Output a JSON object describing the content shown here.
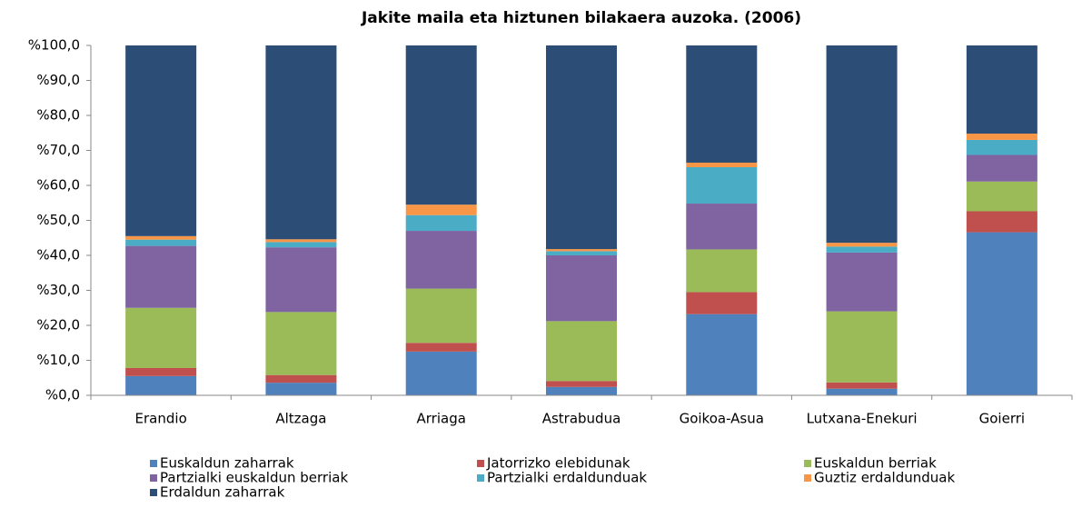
{
  "chart_data": {
    "type": "stacked_bar",
    "title": "Jakite maila eta hiztunen bilakaera auzoka. (2006)",
    "categories": [
      "Erandio",
      "Altzaga",
      "Arriaga",
      "Astrabudua",
      "Goikoa-Asua",
      "Lutxana-Enekuri",
      "Goierri"
    ],
    "series": [
      {
        "name": "Euskaldun zaharrak",
        "color": "#4f81bd",
        "values": [
          5.5,
          3.6,
          12.5,
          2.4,
          23.2,
          1.9,
          46.6
        ]
      },
      {
        "name": "Jatorrizko elebidunak",
        "color": "#c0504d",
        "values": [
          2.3,
          2.2,
          2.5,
          1.7,
          6.3,
          1.8,
          6.0
        ]
      },
      {
        "name": "Euskaldun berriak",
        "color": "#9bbb59",
        "values": [
          17.2,
          18.0,
          15.5,
          17.1,
          12.2,
          20.3,
          8.5
        ]
      },
      {
        "name": "Partzialki euskaldun berriak",
        "color": "#8064a2",
        "values": [
          17.7,
          18.5,
          16.5,
          18.8,
          13.1,
          16.8,
          7.6
        ]
      },
      {
        "name": "Partzialki erdaldunduak",
        "color": "#4bacc6",
        "values": [
          1.8,
          1.5,
          4.5,
          1.2,
          10.4,
          1.7,
          4.3
        ]
      },
      {
        "name": "Guztiz erdaldunduak",
        "color": "#f79646",
        "values": [
          1.0,
          0.8,
          3.0,
          0.6,
          1.3,
          1.1,
          1.8
        ]
      },
      {
        "name": "Erdaldun zaharrak",
        "color": "#2c4d75",
        "values": [
          54.5,
          55.4,
          45.5,
          58.2,
          33.5,
          56.4,
          25.2
        ]
      }
    ],
    "ylim": [
      0,
      100
    ],
    "yticks": [
      {
        "value": 0,
        "label": "%0,0"
      },
      {
        "value": 10,
        "label": "%10,0"
      },
      {
        "value": 20,
        "label": "%20,0"
      },
      {
        "value": 30,
        "label": "%30,0"
      },
      {
        "value": 40,
        "label": "%40,0"
      },
      {
        "value": 50,
        "label": "%50,0"
      },
      {
        "value": 60,
        "label": "%60,0"
      },
      {
        "value": 70,
        "label": "%70,0"
      },
      {
        "value": 80,
        "label": "%80,0"
      },
      {
        "value": 90,
        "label": "%90,0"
      },
      {
        "value": 100,
        "label": "%100,0"
      }
    ]
  }
}
